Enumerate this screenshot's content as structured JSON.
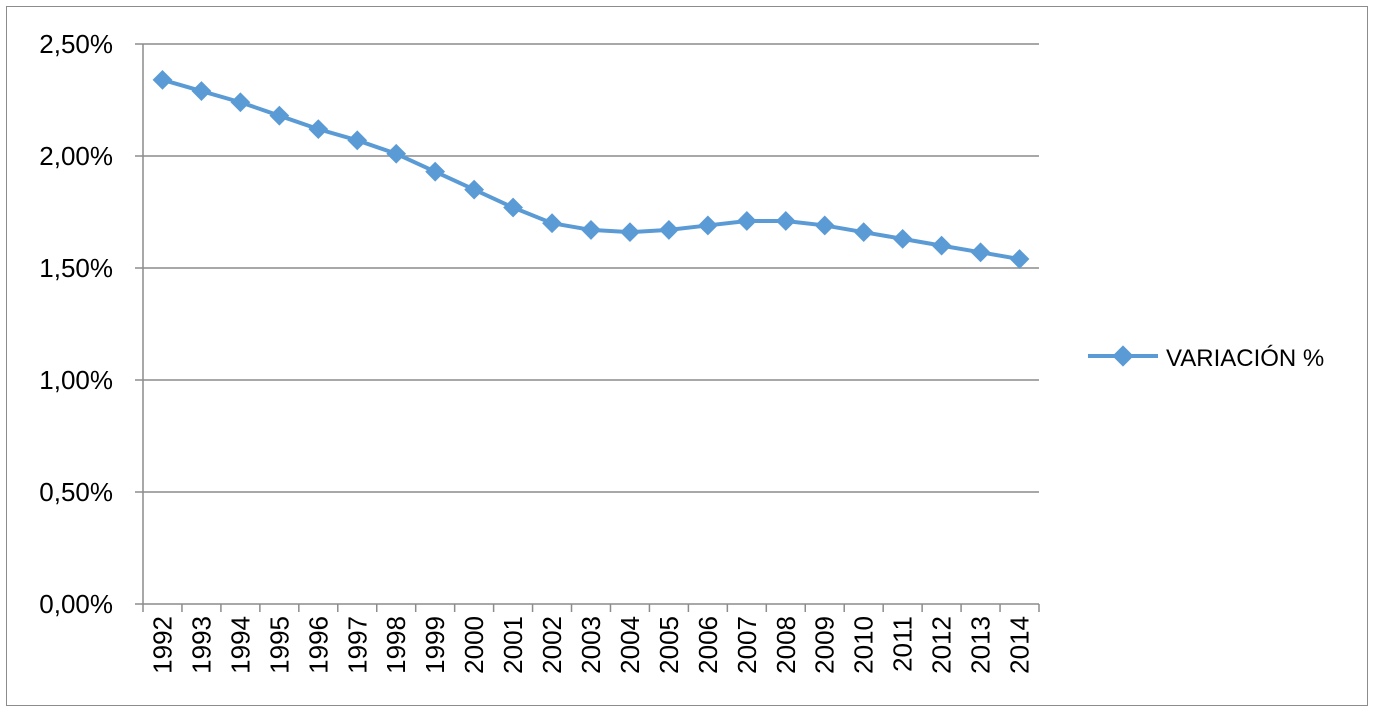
{
  "chart_data": {
    "type": "line",
    "title": "",
    "xlabel": "",
    "ylabel": "",
    "categories": [
      "1992",
      "1993",
      "1994",
      "1995",
      "1996",
      "1997",
      "1998",
      "1999",
      "2000",
      "2001",
      "2002",
      "2003",
      "2004",
      "2005",
      "2006",
      "2007",
      "2008",
      "2009",
      "2010",
      "2011",
      "2012",
      "2013",
      "2014"
    ],
    "series": [
      {
        "name": "VARIACIÓN %",
        "values": [
          2.34,
          2.29,
          2.24,
          2.18,
          2.12,
          2.07,
          2.01,
          1.93,
          1.85,
          1.77,
          1.7,
          1.67,
          1.66,
          1.67,
          1.69,
          1.71,
          1.71,
          1.69,
          1.66,
          1.63,
          1.6,
          1.57,
          1.54
        ],
        "color": "#5b9bd5",
        "marker": "diamond"
      }
    ],
    "yticks": [
      "0,00%",
      "0,50%",
      "1,00%",
      "1,50%",
      "2,00%",
      "2,50%"
    ],
    "ylim": [
      0,
      2.5
    ],
    "grid": "horizontal",
    "legend_position": "right"
  }
}
